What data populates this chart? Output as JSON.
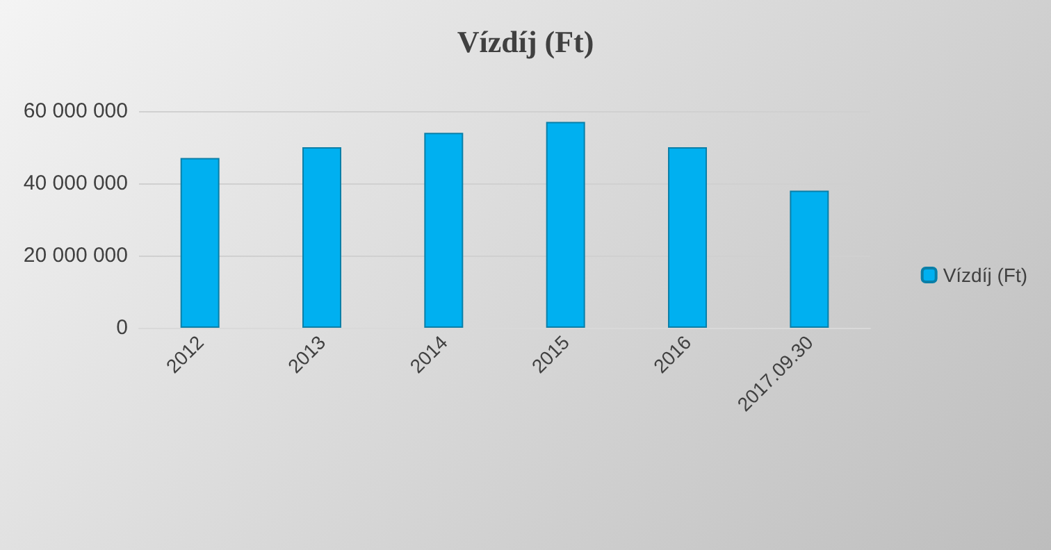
{
  "chart_data": {
    "type": "bar",
    "title": "Vízdíj (Ft)",
    "categories": [
      "2012",
      "2013",
      "2014",
      "2015",
      "2016",
      "2017.09.30"
    ],
    "series": [
      {
        "name": "Vízdíj (Ft)",
        "color": "#00b0f0",
        "values": [
          47000000,
          50000000,
          54000000,
          57000000,
          50000000,
          38000000
        ]
      }
    ],
    "ylim": [
      0,
      60000000
    ],
    "yticks": [
      {
        "value": 0,
        "label": "0"
      },
      {
        "value": 20000000,
        "label": "20 000 000"
      },
      {
        "value": 40000000,
        "label": "40 000 000"
      },
      {
        "value": 60000000,
        "label": "60 000 000"
      }
    ],
    "grid": "y",
    "legend": "right"
  }
}
